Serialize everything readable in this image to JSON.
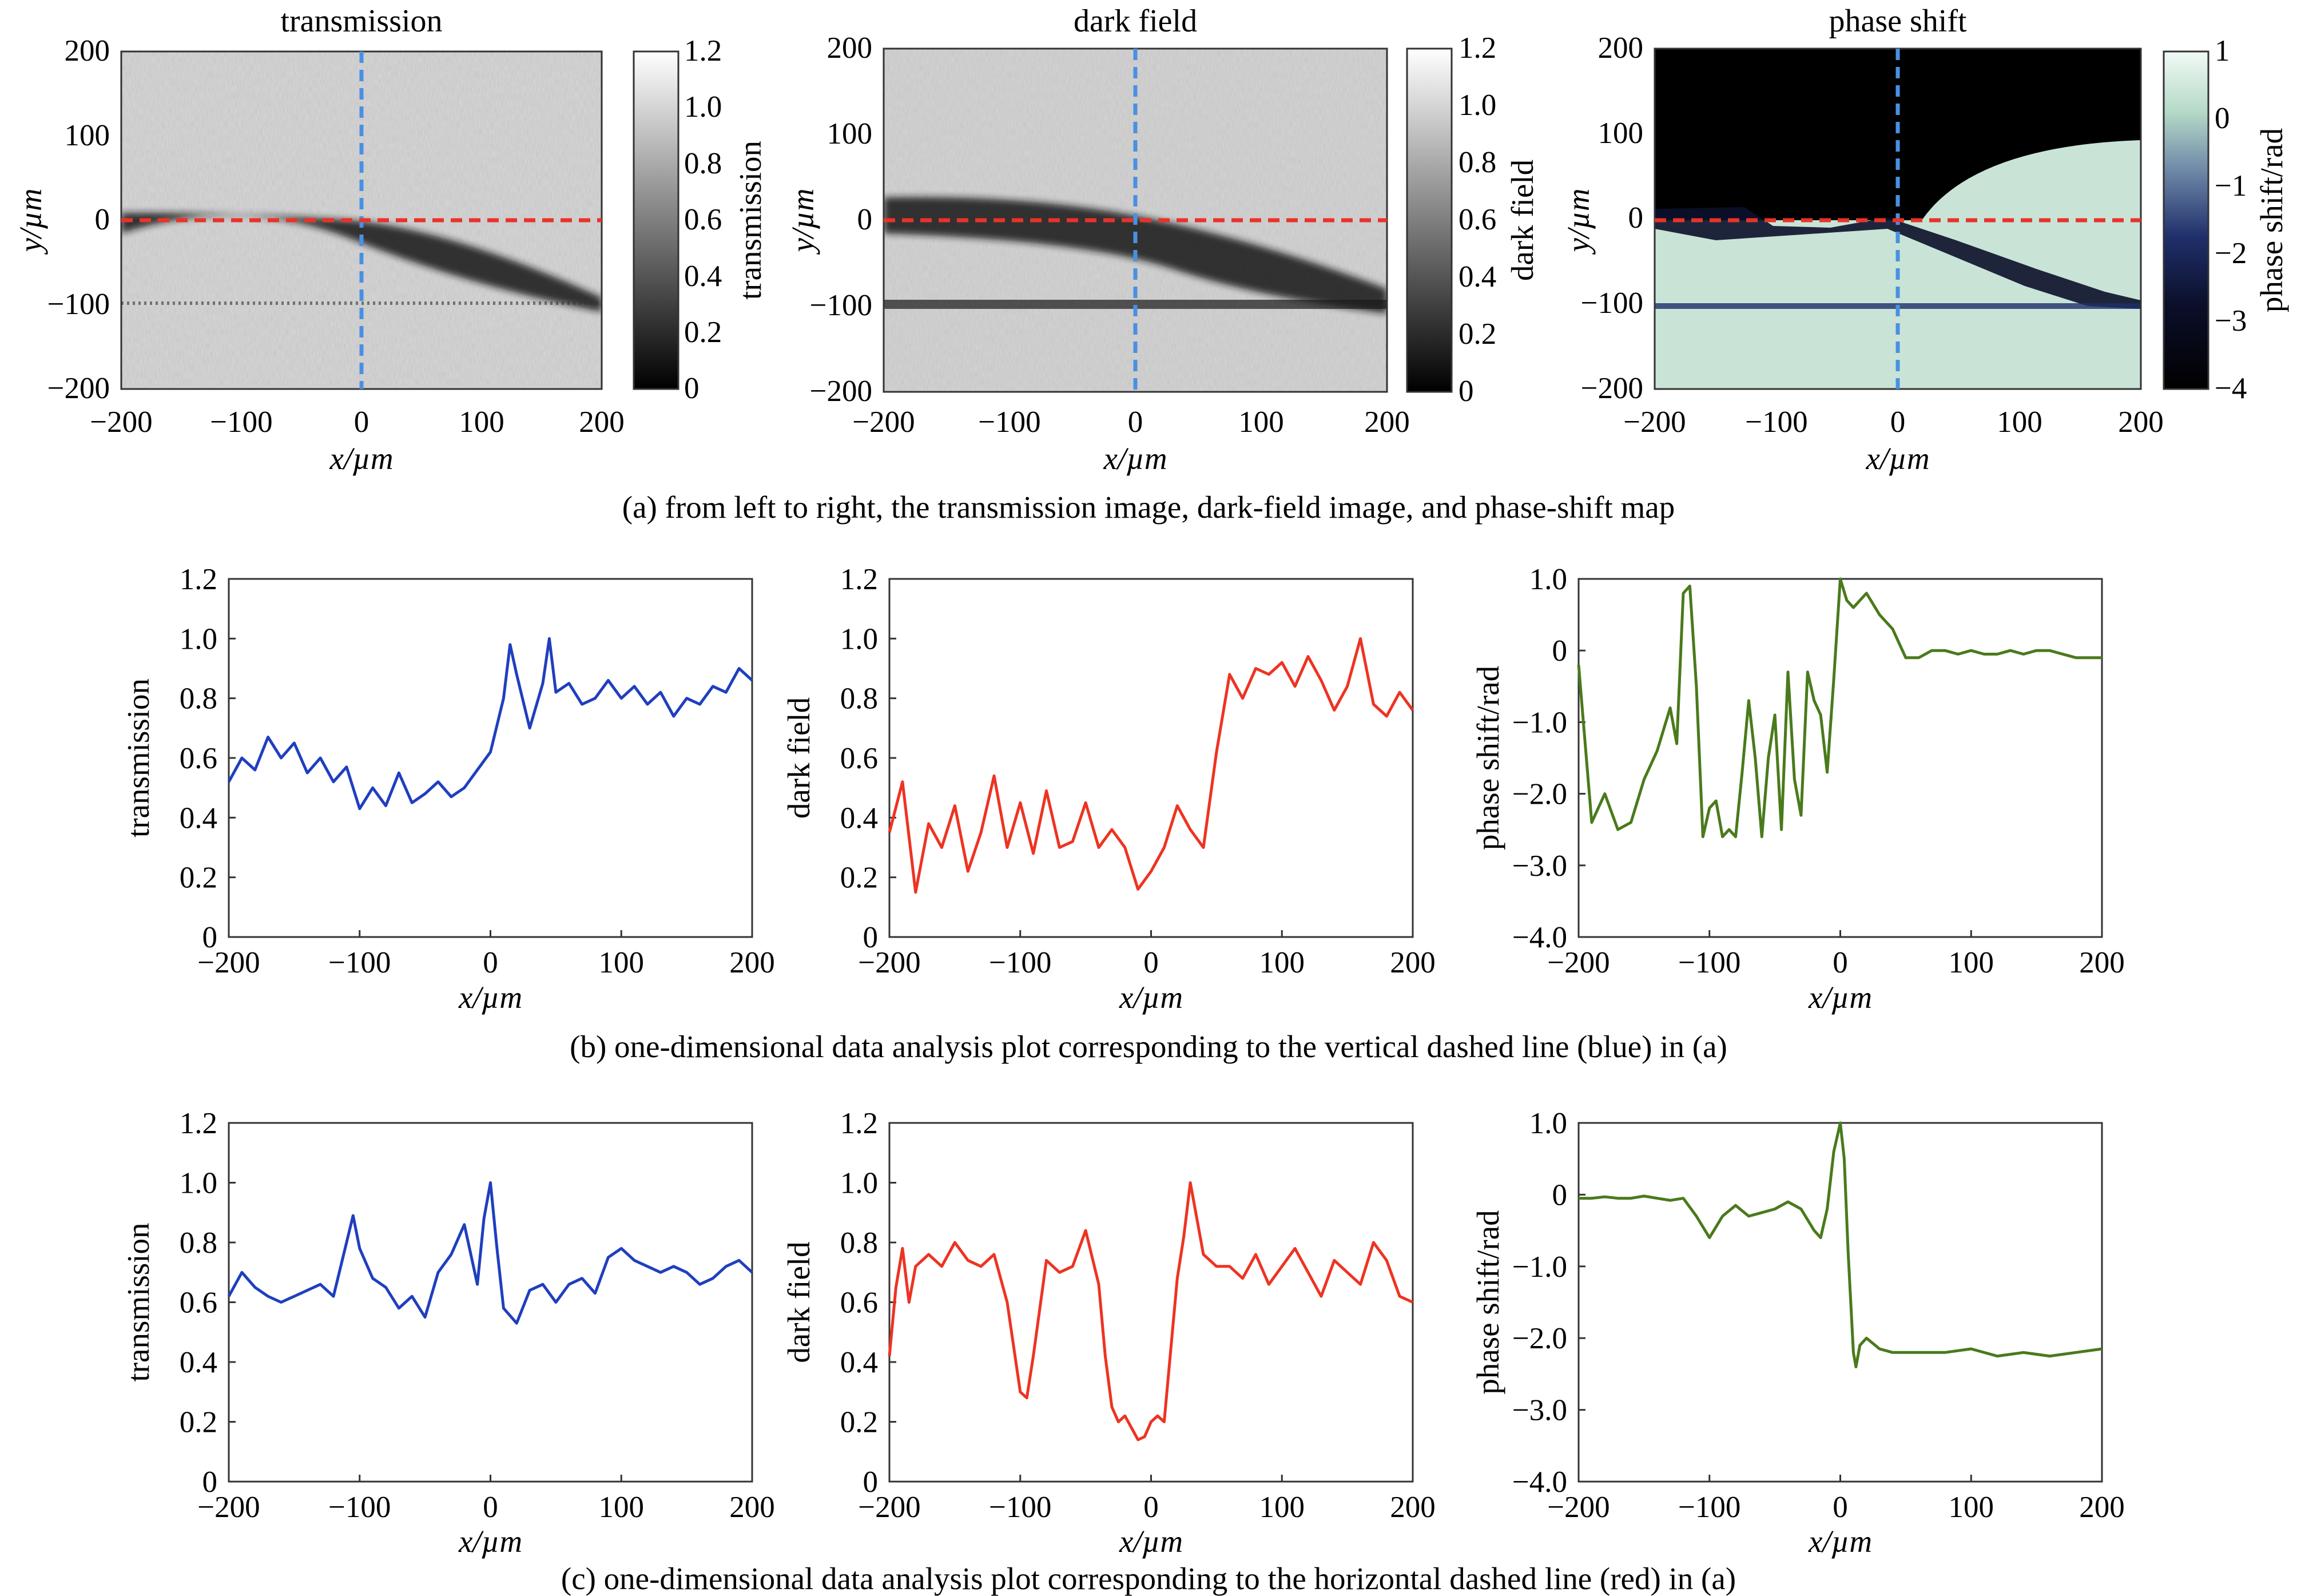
{
  "captions": {
    "a": "(a) from left to right, the transmission image, dark-field image, and phase-shift map",
    "b": "(b) one-dimensional data analysis plot corresponding to the vertical dashed line (blue) in (a)",
    "c": "(c) one-dimensional data analysis plot corresponding to the horizontal dashed line (red) in (a)"
  },
  "colors": {
    "blue_line": "#1f3fbf",
    "red_line": "#ee3322",
    "green_line": "#4a7a1c",
    "blue_dash": "#4a90e2",
    "red_dash": "#e8332a",
    "phase_bg": "#c9e4d6"
  },
  "chart_data": [
    {
      "type": "heatmap",
      "title": "transmission",
      "xlabel": "x/µm",
      "ylabel": "y/µm",
      "xlim": [
        -200,
        200
      ],
      "ylim": [
        -200,
        200
      ],
      "xticks": [
        "−200",
        "−100",
        "0",
        "100",
        "200"
      ],
      "yticks": [
        "200",
        "100",
        "0",
        "−100",
        "−200"
      ],
      "colorbar": {
        "label": "transmission",
        "range": [
          0,
          1.2
        ],
        "ticks": [
          "1.2",
          "1.0",
          "0.8",
          "0.6",
          "0.4",
          "0.2",
          "0"
        ],
        "colormap": "gray"
      },
      "dashed_lines": {
        "vertical_x": 0,
        "horizontal_y": 0
      }
    },
    {
      "type": "heatmap",
      "title": "dark field",
      "xlabel": "x/µm",
      "ylabel": "y/µm",
      "xlim": [
        -200,
        200
      ],
      "ylim": [
        -200,
        200
      ],
      "xticks": [
        "−200",
        "−100",
        "0",
        "100",
        "200"
      ],
      "yticks": [
        "200",
        "100",
        "0",
        "−100",
        "−200"
      ],
      "colorbar": {
        "label": "dark field",
        "range": [
          0,
          1.2
        ],
        "ticks": [
          "1.2",
          "1.0",
          "0.8",
          "0.6",
          "0.4",
          "0.2",
          "0"
        ],
        "colormap": "gray"
      },
      "dashed_lines": {
        "vertical_x": 0,
        "horizontal_y": 0
      }
    },
    {
      "type": "heatmap",
      "title": "phase shift",
      "xlabel": "x/µm",
      "ylabel": "y/µm",
      "xlim": [
        -200,
        200
      ],
      "ylim": [
        -200,
        200
      ],
      "xticks": [
        "−200",
        "−100",
        "0",
        "100",
        "200"
      ],
      "yticks": [
        "200",
        "100",
        "0",
        "−100",
        "−200"
      ],
      "colorbar": {
        "label": "phase shift/rad",
        "range": [
          -4,
          1
        ],
        "ticks": [
          "1",
          "0",
          "−1",
          "−2",
          "−3",
          "−4"
        ],
        "colormap": "black-navy-mint"
      },
      "dashed_lines": {
        "vertical_x": 0,
        "horizontal_y": 0
      }
    },
    {
      "type": "line",
      "xlabel": "x/µm",
      "ylabel": "transmission",
      "xlim": [
        -200,
        200
      ],
      "ylim": [
        0,
        1.2
      ],
      "xticks": [
        "−200",
        "−100",
        "0",
        "100",
        "200"
      ],
      "yticks": [
        "1.2",
        "1.0",
        "0.8",
        "0.6",
        "0.4",
        "0.2",
        "0"
      ],
      "x": [
        -200,
        -190,
        -180,
        -170,
        -160,
        -150,
        -140,
        -130,
        -120,
        -110,
        -100,
        -90,
        -80,
        -70,
        -60,
        -50,
        -40,
        -30,
        -20,
        -10,
        0,
        10,
        15,
        20,
        30,
        40,
        45,
        50,
        60,
        70,
        80,
        90,
        100,
        110,
        120,
        130,
        140,
        150,
        160,
        170,
        180,
        190,
        200
      ],
      "values": [
        0.52,
        0.6,
        0.56,
        0.67,
        0.6,
        0.65,
        0.55,
        0.6,
        0.52,
        0.57,
        0.43,
        0.5,
        0.44,
        0.55,
        0.45,
        0.48,
        0.52,
        0.47,
        0.5,
        0.56,
        0.62,
        0.8,
        0.98,
        0.88,
        0.7,
        0.85,
        1.0,
        0.82,
        0.85,
        0.78,
        0.8,
        0.86,
        0.8,
        0.84,
        0.78,
        0.82,
        0.74,
        0.8,
        0.78,
        0.84,
        0.82,
        0.9,
        0.86
      ]
    },
    {
      "type": "line",
      "xlabel": "x/µm",
      "ylabel": "dark field",
      "xlim": [
        -200,
        200
      ],
      "ylim": [
        0,
        1.2
      ],
      "xticks": [
        "−200",
        "−100",
        "0",
        "100",
        "200"
      ],
      "yticks": [
        "1.2",
        "1.0",
        "0.8",
        "0.6",
        "0.4",
        "0.2",
        "0"
      ],
      "x": [
        -200,
        -190,
        -180,
        -170,
        -160,
        -150,
        -140,
        -130,
        -120,
        -110,
        -100,
        -90,
        -80,
        -70,
        -60,
        -50,
        -40,
        -30,
        -20,
        -10,
        0,
        10,
        20,
        30,
        40,
        50,
        60,
        70,
        80,
        90,
        100,
        110,
        120,
        130,
        140,
        150,
        160,
        170,
        180,
        190,
        200
      ],
      "values": [
        0.35,
        0.52,
        0.15,
        0.38,
        0.3,
        0.44,
        0.22,
        0.35,
        0.54,
        0.3,
        0.45,
        0.28,
        0.49,
        0.3,
        0.32,
        0.45,
        0.3,
        0.36,
        0.3,
        0.16,
        0.22,
        0.3,
        0.44,
        0.36,
        0.3,
        0.62,
        0.88,
        0.8,
        0.9,
        0.88,
        0.92,
        0.84,
        0.94,
        0.86,
        0.76,
        0.84,
        1.0,
        0.78,
        0.74,
        0.82,
        0.76
      ]
    },
    {
      "type": "line",
      "xlabel": "x/µm",
      "ylabel": "phase shift/rad",
      "xlim": [
        -200,
        200
      ],
      "ylim": [
        -4.0,
        1.0
      ],
      "xticks": [
        "−200",
        "−100",
        "0",
        "100",
        "200"
      ],
      "yticks": [
        "1.0",
        "0",
        "−1.0",
        "−2.0",
        "−3.0",
        "−4.0"
      ],
      "x": [
        -200,
        -190,
        -180,
        -170,
        -160,
        -150,
        -140,
        -130,
        -125,
        -120,
        -115,
        -110,
        -105,
        -100,
        -95,
        -90,
        -85,
        -80,
        -75,
        -70,
        -65,
        -60,
        -55,
        -50,
        -45,
        -40,
        -35,
        -30,
        -25,
        -20,
        -15,
        -10,
        -5,
        0,
        5,
        10,
        20,
        30,
        40,
        50,
        60,
        70,
        80,
        90,
        100,
        110,
        120,
        130,
        140,
        150,
        160,
        170,
        180,
        190,
        200
      ],
      "values": [
        -0.2,
        -2.4,
        -2.0,
        -2.5,
        -2.4,
        -1.8,
        -1.4,
        -0.8,
        -1.3,
        0.8,
        0.9,
        -0.5,
        -2.6,
        -2.2,
        -2.1,
        -2.6,
        -2.5,
        -2.6,
        -1.7,
        -0.7,
        -1.5,
        -2.6,
        -1.5,
        -0.9,
        -2.5,
        -0.3,
        -1.8,
        -2.3,
        -0.3,
        -0.7,
        -0.9,
        -1.7,
        -0.4,
        1.0,
        0.7,
        0.6,
        0.8,
        0.5,
        0.3,
        -0.1,
        -0.1,
        0,
        0,
        -0.05,
        0,
        -0.05,
        -0.05,
        0,
        -0.05,
        0,
        0,
        -0.05,
        -0.1,
        -0.1,
        -0.1
      ]
    },
    {
      "type": "line",
      "xlabel": "x/µm",
      "ylabel": "transmission",
      "xlim": [
        -200,
        200
      ],
      "ylim": [
        0,
        1.2
      ],
      "xticks": [
        "−200",
        "−100",
        "0",
        "100",
        "200"
      ],
      "yticks": [
        "1.2",
        "1.0",
        "0.8",
        "0.6",
        "0.4",
        "0.2",
        "0"
      ],
      "x": [
        -200,
        -190,
        -180,
        -170,
        -160,
        -150,
        -140,
        -130,
        -120,
        -110,
        -105,
        -100,
        -90,
        -80,
        -70,
        -60,
        -50,
        -40,
        -30,
        -20,
        -10,
        -5,
        0,
        5,
        10,
        20,
        30,
        40,
        50,
        60,
        70,
        80,
        90,
        100,
        110,
        120,
        130,
        140,
        150,
        160,
        170,
        180,
        190,
        200
      ],
      "values": [
        0.62,
        0.7,
        0.65,
        0.62,
        0.6,
        0.62,
        0.64,
        0.66,
        0.62,
        0.8,
        0.89,
        0.78,
        0.68,
        0.65,
        0.58,
        0.62,
        0.55,
        0.7,
        0.76,
        0.86,
        0.66,
        0.88,
        1.0,
        0.78,
        0.58,
        0.53,
        0.64,
        0.66,
        0.6,
        0.66,
        0.68,
        0.63,
        0.75,
        0.78,
        0.74,
        0.72,
        0.7,
        0.72,
        0.7,
        0.66,
        0.68,
        0.72,
        0.74,
        0.7
      ]
    },
    {
      "type": "line",
      "xlabel": "x/µm",
      "ylabel": "dark field",
      "xlim": [
        -200,
        200
      ],
      "ylim": [
        0,
        1.2
      ],
      "xticks": [
        "−200",
        "−100",
        "0",
        "100",
        "200"
      ],
      "yticks": [
        "1.2",
        "1.0",
        "0.8",
        "0.6",
        "0.4",
        "0.2",
        "0"
      ],
      "x": [
        -200,
        -195,
        -190,
        -185,
        -180,
        -170,
        -160,
        -150,
        -140,
        -130,
        -120,
        -110,
        -100,
        -95,
        -90,
        -80,
        -70,
        -60,
        -50,
        -40,
        -35,
        -30,
        -25,
        -20,
        -15,
        -10,
        -5,
        0,
        5,
        10,
        20,
        25,
        30,
        40,
        50,
        60,
        70,
        80,
        90,
        100,
        110,
        120,
        130,
        140,
        150,
        160,
        170,
        180,
        190,
        200
      ],
      "values": [
        0.42,
        0.65,
        0.78,
        0.6,
        0.72,
        0.76,
        0.72,
        0.8,
        0.74,
        0.72,
        0.76,
        0.6,
        0.3,
        0.28,
        0.42,
        0.74,
        0.7,
        0.72,
        0.84,
        0.66,
        0.42,
        0.25,
        0.2,
        0.22,
        0.18,
        0.14,
        0.15,
        0.2,
        0.22,
        0.2,
        0.68,
        0.82,
        1.0,
        0.76,
        0.72,
        0.72,
        0.68,
        0.76,
        0.66,
        0.72,
        0.78,
        0.7,
        0.62,
        0.74,
        0.7,
        0.66,
        0.8,
        0.74,
        0.62,
        0.6
      ]
    },
    {
      "type": "line",
      "xlabel": "x/µm",
      "ylabel": "phase shift/rad",
      "xlim": [
        -200,
        200
      ],
      "ylim": [
        -4.0,
        1.0
      ],
      "xticks": [
        "−200",
        "−100",
        "0",
        "100",
        "200"
      ],
      "yticks": [
        "1.0",
        "0",
        "−1.0",
        "−2.0",
        "−3.0",
        "−4.0"
      ],
      "x": [
        -200,
        -190,
        -180,
        -170,
        -160,
        -150,
        -140,
        -130,
        -120,
        -110,
        -100,
        -95,
        -90,
        -80,
        -70,
        -60,
        -50,
        -40,
        -30,
        -20,
        -15,
        -10,
        -5,
        0,
        3,
        6,
        8,
        10,
        12,
        15,
        20,
        30,
        40,
        60,
        80,
        100,
        120,
        140,
        160,
        180,
        200
      ],
      "values": [
        -0.05,
        -0.05,
        -0.03,
        -0.05,
        -0.05,
        -0.02,
        -0.05,
        -0.08,
        -0.05,
        -0.3,
        -0.6,
        -0.45,
        -0.3,
        -0.15,
        -0.3,
        -0.25,
        -0.2,
        -0.1,
        -0.2,
        -0.5,
        -0.6,
        -0.2,
        0.6,
        1.0,
        0.5,
        -0.8,
        -1.5,
        -2.2,
        -2.4,
        -2.1,
        -2.0,
        -2.15,
        -2.2,
        -2.2,
        -2.2,
        -2.15,
        -2.25,
        -2.2,
        -2.25,
        -2.2,
        -2.15
      ]
    }
  ]
}
